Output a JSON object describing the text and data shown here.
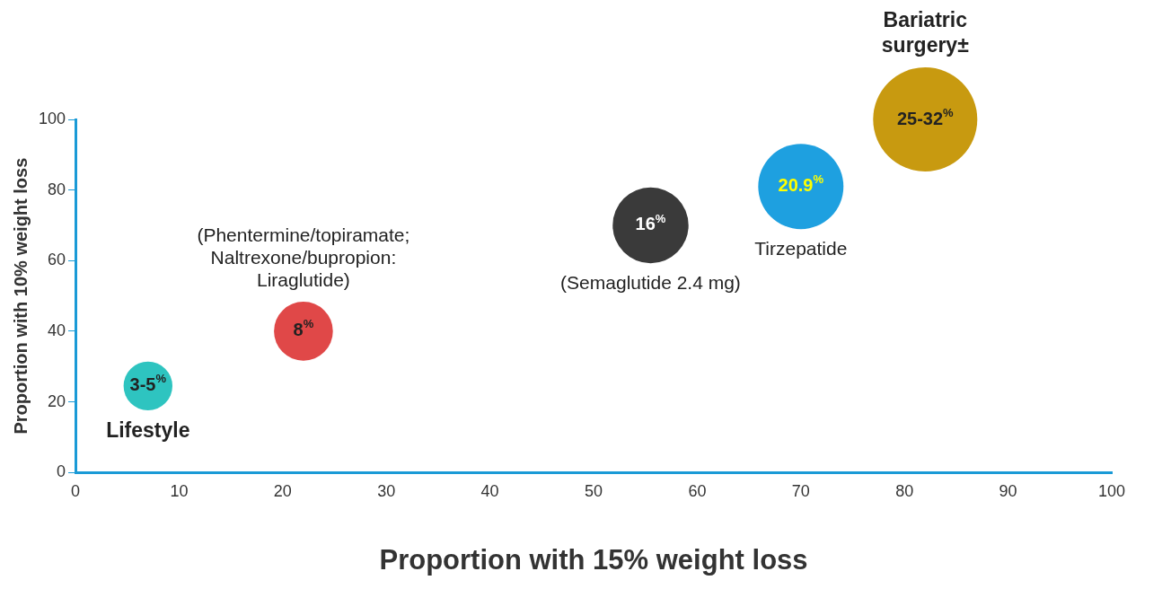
{
  "chart_data": {
    "type": "bubble",
    "xlabel": "Proportion with 15% weight loss",
    "ylabel": "Proportion with 10% weight loss",
    "x": [
      7,
      22,
      55.5,
      70,
      82
    ],
    "values": [
      24.5,
      40,
      70,
      81,
      100
    ],
    "sizes": [
      0.22,
      0.32,
      0.53,
      0.67,
      1
    ],
    "colors": [
      "#2ec4c0",
      "#e04848",
      "#3a3a3a",
      "#1ea0e0",
      "#c89a10"
    ],
    "annotations": [
      {
        "text": "3-5$^{%}$",
        "x": 7,
        "y": 24.5
      },
      {
        "text": "8$^{%}$",
        "x": 22,
        "y": 40
      },
      {
        "text": "16$^{%}$",
        "x": 55.5,
        "y": 70
      },
      {
        "text": "20.9$^{%}$",
        "x": 70,
        "y": 81
      },
      {
        "text": "25-32$^{%}$",
        "x": 82,
        "y": 100
      },
      {
        "text": "Lifestyle",
        "x": 7,
        "y": 24.5
      },
      {
        "text": "(Phentermine/topiramate;\nNaltrexone/bupropion:\nLiraglutide)",
        "x": 22,
        "y": 40
      },
      {
        "text": "(Semaglutide 2.4 mg)",
        "x": 55.5,
        "y": 70
      },
      {
        "text": "Tirzepatide",
        "x": 70,
        "y": 81
      },
      "Bariatric\nsurgery±"
    ],
    "xlim": [
      0,
      100
    ],
    "xticks": [
      0,
      10,
      20,
      30,
      40,
      50,
      60,
      70,
      80,
      90,
      100
    ],
    "ylim": [
      0,
      100
    ],
    "yticks": [
      0,
      20,
      40,
      60,
      80,
      100
    ],
    "grid": false,
    "legend": false
  }
}
